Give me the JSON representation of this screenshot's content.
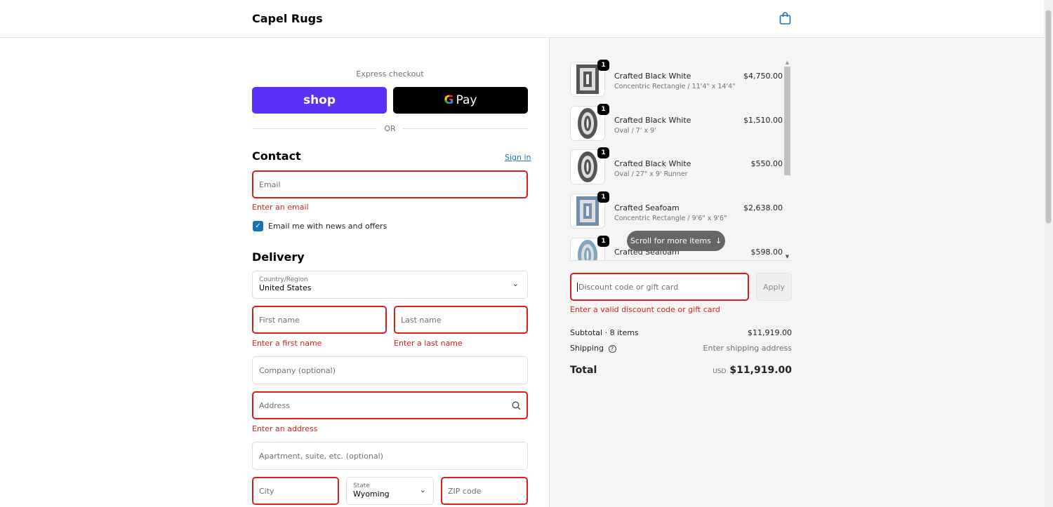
{
  "header": {
    "brand": "Capel Rugs",
    "cart_icon": "shopping-bag-icon"
  },
  "express": {
    "label": "Express checkout",
    "shop_label": "shop",
    "gpay_label": "Pay",
    "or_label": "OR",
    "colors": {
      "shop": "#5a31f4",
      "gpay": "#000000"
    }
  },
  "contact": {
    "title": "Contact",
    "sign_in": "Sign in",
    "email_placeholder": "Email",
    "email_error": "Enter an email",
    "newsletter_label": "Email me with news and offers",
    "newsletter_checked": true
  },
  "delivery": {
    "title": "Delivery",
    "country_label": "Country/Region",
    "country_value": "United States",
    "first_name_placeholder": "First name",
    "first_name_error": "Enter a first name",
    "last_name_placeholder": "Last name",
    "last_name_error": "Enter a last name",
    "company_placeholder": "Company (optional)",
    "address_placeholder": "Address",
    "address_error": "Enter an address",
    "apartment_placeholder": "Apartment, suite, etc. (optional)",
    "city_placeholder": "City",
    "state_label": "State",
    "state_value": "Wyoming",
    "zip_placeholder": "ZIP code"
  },
  "cart": {
    "items": [
      {
        "name": "Crafted Black White",
        "variant": "Concentric Rectangle / 11'4\" x 14'4\"",
        "price": "$4,750.00",
        "qty": "1",
        "shape": "rect",
        "color": "#555555"
      },
      {
        "name": "Crafted Black White",
        "variant": "Oval / 7' x 9'",
        "price": "$1,510.00",
        "qty": "1",
        "shape": "oval",
        "color": "#555555"
      },
      {
        "name": "Crafted Black White",
        "variant": "Oval / 27\" x 9' Runner",
        "price": "$550.00",
        "qty": "1",
        "shape": "oval",
        "color": "#555555"
      },
      {
        "name": "Crafted Seafoam",
        "variant": "Concentric Rectangle / 9'6\" x 9'6\"",
        "price": "$2,638.00",
        "qty": "1",
        "shape": "rect",
        "color": "#6f8fae"
      },
      {
        "name": "Crafted Seafoam",
        "variant": "",
        "price": "$598.00",
        "qty": "1",
        "shape": "oval",
        "color": "#7fa6bf"
      }
    ],
    "scroll_hint": "Scroll for more items"
  },
  "discount": {
    "placeholder": "Discount code or gift card",
    "apply_label": "Apply",
    "error": "Enter a valid discount code or gift card"
  },
  "summary": {
    "subtotal_label": "Subtotal · 8 items",
    "subtotal_value": "$11,919.00",
    "shipping_label": "Shipping",
    "shipping_value": "Enter shipping address",
    "total_label": "Total",
    "currency": "USD",
    "total_value": "$11,919.00"
  }
}
